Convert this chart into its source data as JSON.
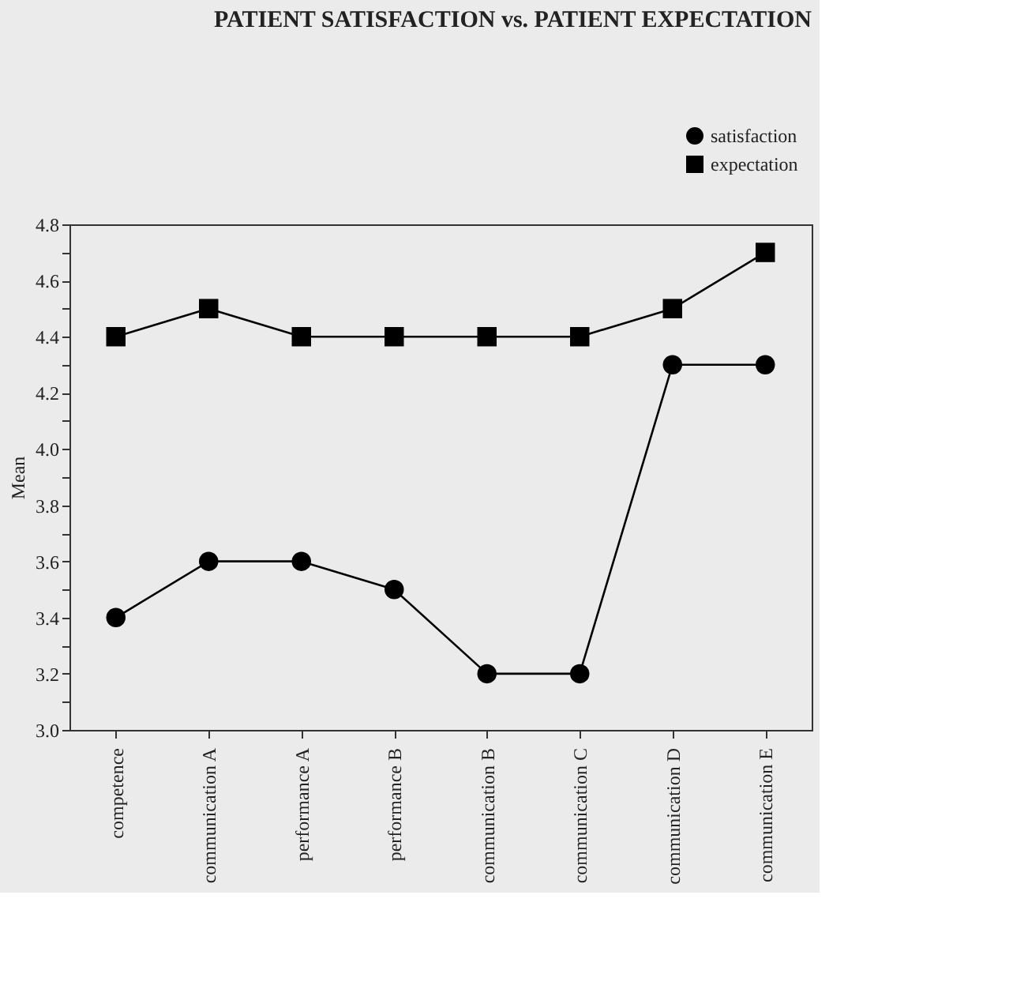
{
  "chart_data": {
    "type": "line",
    "title": "PATIENT SATISFACTION vs. PATIENT EXPECTATION",
    "ylabel": "Mean",
    "categories": [
      "competence",
      "communication A",
      "performance A",
      "performance B",
      "communication B",
      "communication C",
      "communication D",
      "communication E"
    ],
    "series": [
      {
        "name": "satisfaction",
        "color": "#000000",
        "marker": "circle",
        "values": [
          3.4,
          3.6,
          3.6,
          3.5,
          3.2,
          3.2,
          4.3,
          4.3
        ]
      },
      {
        "name": "expectation",
        "color": "#000000",
        "marker": "square",
        "values": [
          4.4,
          4.5,
          4.4,
          4.4,
          4.4,
          4.4,
          4.5,
          4.7
        ]
      }
    ],
    "ylim": [
      3.0,
      4.8
    ],
    "yticks": [
      {
        "value": 3.0,
        "label": "3.0"
      },
      {
        "value": 3.1,
        "label": null
      },
      {
        "value": 3.2,
        "label": "3.2"
      },
      {
        "value": 3.3,
        "label": null
      },
      {
        "value": 3.4,
        "label": "3.4"
      },
      {
        "value": 3.5,
        "label": null
      },
      {
        "value": 3.6,
        "label": "3.6"
      },
      {
        "value": 3.7,
        "label": null
      },
      {
        "value": 3.8,
        "label": "3.8"
      },
      {
        "value": 3.9,
        "label": null
      },
      {
        "value": 4.0,
        "label": "4.0"
      },
      {
        "value": 4.1,
        "label": null
      },
      {
        "value": 4.2,
        "label": "4.2"
      },
      {
        "value": 4.3,
        "label": null
      },
      {
        "value": 4.4,
        "label": "4.4"
      },
      {
        "value": 4.5,
        "label": null
      },
      {
        "value": 4.6,
        "label": "4.6"
      },
      {
        "value": 4.7,
        "label": null
      },
      {
        "value": 4.8,
        "label": "4.8"
      }
    ],
    "grid": false,
    "legend": "top right",
    "line_style": "solid"
  }
}
